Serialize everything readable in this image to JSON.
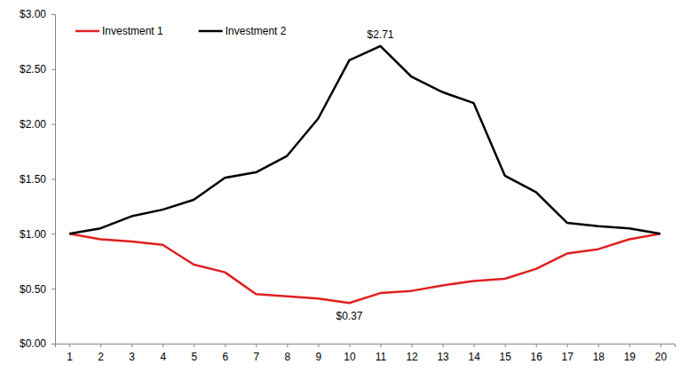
{
  "chart_data": {
    "type": "line",
    "categories": [
      "1",
      "2",
      "3",
      "4",
      "5",
      "6",
      "7",
      "8",
      "9",
      "10",
      "11",
      "12",
      "13",
      "14",
      "15",
      "16",
      "17",
      "18",
      "19",
      "20"
    ],
    "series": [
      {
        "name": "Investment 1",
        "color": "#e02020",
        "values": [
          1.0,
          0.95,
          0.93,
          0.9,
          0.72,
          0.65,
          0.45,
          0.43,
          0.41,
          0.37,
          0.46,
          0.48,
          0.53,
          0.57,
          0.59,
          0.68,
          0.82,
          0.86,
          0.95,
          1.0
        ]
      },
      {
        "name": "Investment 2",
        "color": "#000000",
        "values": [
          1.0,
          1.05,
          1.16,
          1.22,
          1.31,
          1.51,
          1.56,
          1.71,
          2.05,
          2.58,
          2.71,
          2.43,
          2.29,
          2.19,
          1.53,
          1.38,
          1.1,
          1.07,
          1.05,
          1.0
        ]
      }
    ],
    "ylim": [
      0,
      3
    ],
    "yticks": [
      {
        "value": 0,
        "label": "$0.00"
      },
      {
        "value": 0.5,
        "label": "$0.50"
      },
      {
        "value": 1,
        "label": "$1.00"
      },
      {
        "value": 1.5,
        "label": "$1.50"
      },
      {
        "value": 2,
        "label": "$2.00"
      },
      {
        "value": 2.5,
        "label": "$2.50"
      },
      {
        "value": 3,
        "label": "$3.00"
      }
    ],
    "annotations": [
      {
        "text": "$2.71",
        "category": "11",
        "value": 2.71
      },
      {
        "text": "$0.37",
        "category": "10",
        "value": 0.37
      }
    ],
    "grid": false,
    "legend": "top-left"
  }
}
